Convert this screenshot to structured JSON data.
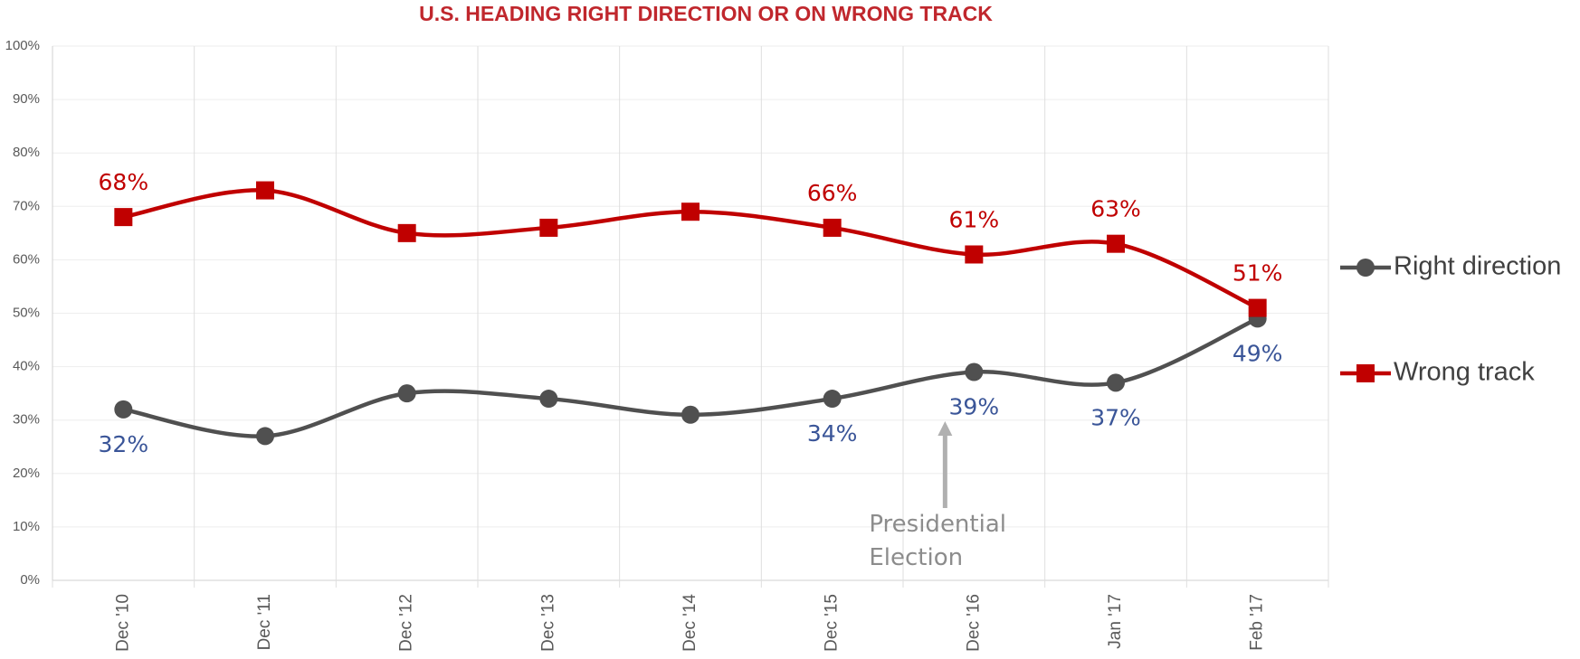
{
  "chart_data": {
    "type": "line",
    "title": "U.S. HEADING RIGHT DIRECTION OR ON WRONG TRACK",
    "categories": [
      "Dec '10",
      "Dec '11",
      "Dec '12",
      "Dec '13",
      "Dec '14",
      "Dec '15",
      "Dec '16",
      "Jan '17",
      "Feb '17"
    ],
    "series": [
      {
        "name": "Right direction",
        "color": "#505050",
        "label_color": "#3a5598",
        "values": [
          32,
          27,
          35,
          34,
          31,
          34,
          39,
          37,
          49
        ],
        "value_labels": [
          "32%",
          null,
          null,
          null,
          null,
          "34%",
          "39%",
          "37%",
          "49%"
        ]
      },
      {
        "name": "Wrong track",
        "color": "#c00000",
        "label_color": "#c00000",
        "values": [
          68,
          73,
          65,
          66,
          69,
          66,
          61,
          63,
          51
        ],
        "value_labels": [
          "68%",
          null,
          null,
          null,
          null,
          "66%",
          "61%",
          "63%",
          "51%"
        ]
      }
    ],
    "ylim": [
      0,
      100
    ],
    "yticks": [
      {
        "value": 0,
        "label": "0%"
      },
      {
        "value": 10,
        "label": "10%"
      },
      {
        "value": 20,
        "label": "20%"
      },
      {
        "value": 30,
        "label": "30%"
      },
      {
        "value": 40,
        "label": "40%"
      },
      {
        "value": 50,
        "label": "50%"
      },
      {
        "value": 60,
        "label": "60%"
      },
      {
        "value": 70,
        "label": "70%"
      },
      {
        "value": 80,
        "label": "80%"
      },
      {
        "value": 90,
        "label": "90%"
      },
      {
        "value": 100,
        "label": "100%"
      }
    ],
    "grid": true,
    "legend": "right",
    "annotation": {
      "text": "Presidential Election",
      "category_index": 6
    }
  }
}
